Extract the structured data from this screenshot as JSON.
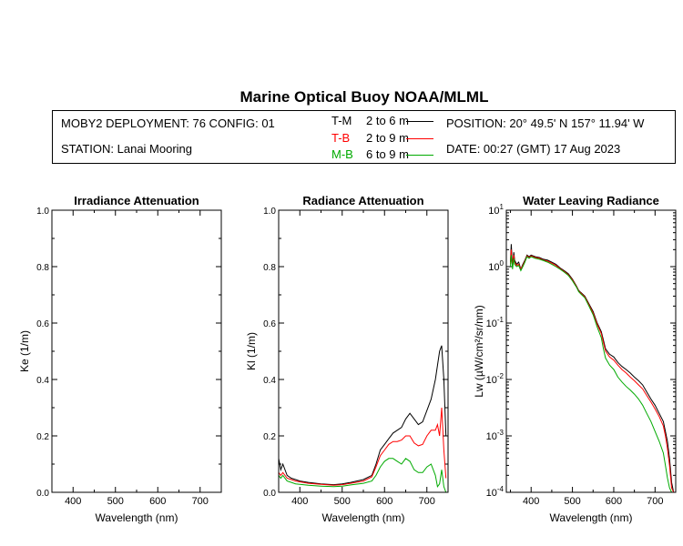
{
  "header": {
    "title": "Marine Optical Buoy NOAA/MLML",
    "deployment": "MOBY2 DEPLOYMENT: 76 CONFIG: 01",
    "station": "STATION: Lanai Mooring",
    "position": "POSITION: 20° 49.5' N   157° 11.94' W",
    "date": "DATE: 00:27 (GMT) 17 Aug 2023",
    "legend": [
      {
        "key": "T-M",
        "range": "2 to 6  m",
        "color": "#000000"
      },
      {
        "key": "T-B",
        "range": "2 to 9  m",
        "color": "#ff0000"
      },
      {
        "key": "M-B",
        "range": "6 to 9  m",
        "color": "#00aa00"
      }
    ]
  },
  "chart_data": [
    {
      "type": "line",
      "title": "Irradiance Attenuation",
      "xlabel": "Wavelength (nm)",
      "ylabel": "Ke  (1/m)",
      "xlim": [
        350,
        750
      ],
      "ylim": [
        0,
        1
      ],
      "xticks": [
        400,
        500,
        600,
        700
      ],
      "yticks": [
        "0.0",
        "0.2",
        "0.4",
        "0.6",
        "0.8",
        "1.0"
      ],
      "series": []
    },
    {
      "type": "line",
      "title": "Radiance Attenuation",
      "xlabel": "Wavelength (nm)",
      "ylabel": "Kl  (1/m)",
      "xlim": [
        350,
        750
      ],
      "ylim": [
        0,
        1
      ],
      "xticks": [
        400,
        500,
        600,
        700
      ],
      "yticks": [
        "0.0",
        "0.2",
        "0.4",
        "0.6",
        "0.8",
        "1.0"
      ],
      "series": [
        {
          "name": "T-M",
          "color": "#000000",
          "x": [
            350,
            355,
            360,
            370,
            380,
            390,
            400,
            420,
            450,
            480,
            500,
            520,
            550,
            570,
            580,
            590,
            600,
            610,
            620,
            630,
            640,
            650,
            660,
            670,
            680,
            690,
            700,
            710,
            720,
            725,
            730,
            735,
            740,
            745
          ],
          "y": [
            0.12,
            0.08,
            0.1,
            0.06,
            0.05,
            0.045,
            0.04,
            0.035,
            0.03,
            0.027,
            0.03,
            0.035,
            0.045,
            0.06,
            0.1,
            0.15,
            0.17,
            0.19,
            0.21,
            0.22,
            0.23,
            0.26,
            0.28,
            0.26,
            0.24,
            0.25,
            0.29,
            0.33,
            0.4,
            0.45,
            0.5,
            0.52,
            0.4,
            0.2
          ]
        },
        {
          "name": "T-B",
          "color": "#ff0000",
          "x": [
            350,
            355,
            360,
            370,
            380,
            390,
            400,
            420,
            450,
            480,
            500,
            520,
            550,
            570,
            580,
            590,
            600,
            610,
            620,
            630,
            640,
            650,
            660,
            670,
            680,
            690,
            700,
            710,
            720,
            725,
            730,
            735,
            740,
            745
          ],
          "y": [
            0.07,
            0.06,
            0.07,
            0.05,
            0.045,
            0.04,
            0.037,
            0.032,
            0.028,
            0.025,
            0.027,
            0.032,
            0.04,
            0.055,
            0.09,
            0.13,
            0.15,
            0.17,
            0.18,
            0.18,
            0.185,
            0.2,
            0.2,
            0.175,
            0.165,
            0.17,
            0.2,
            0.22,
            0.22,
            0.24,
            0.2,
            0.3,
            0.15,
            0.05
          ]
        },
        {
          "name": "M-B",
          "color": "#00aa00",
          "x": [
            350,
            355,
            360,
            370,
            380,
            390,
            400,
            420,
            450,
            480,
            500,
            520,
            550,
            570,
            580,
            590,
            600,
            610,
            620,
            630,
            640,
            650,
            660,
            670,
            680,
            690,
            700,
            710,
            720,
            725,
            730,
            735,
            740,
            745
          ],
          "y": [
            0.06,
            0.05,
            0.06,
            0.04,
            0.035,
            0.03,
            0.028,
            0.025,
            0.022,
            0.02,
            0.022,
            0.026,
            0.032,
            0.04,
            0.06,
            0.09,
            0.11,
            0.12,
            0.12,
            0.11,
            0.1,
            0.12,
            0.11,
            0.08,
            0.07,
            0.07,
            0.09,
            0.1,
            0.06,
            0.02,
            0.03,
            0.08,
            0.02,
            0.0
          ]
        }
      ]
    },
    {
      "type": "line",
      "title": "Water Leaving Radiance",
      "xlabel": "Wavelength (nm)",
      "ylabel": "Lw  (µW/cm²/sr/nm)",
      "xlim": [
        340,
        750
      ],
      "ylim": [
        0.0001,
        10
      ],
      "yscale": "log",
      "xticks": [
        400,
        500,
        600,
        700
      ],
      "yticks": [
        {
          "base": "10",
          "exp": "1"
        },
        {
          "base": "10",
          "exp": "0"
        },
        {
          "base": "10",
          "exp": "-1"
        },
        {
          "base": "10",
          "exp": "-2"
        },
        {
          "base": "10",
          "exp": "-3"
        },
        {
          "base": "10",
          "exp": "-4"
        }
      ],
      "series": [
        {
          "name": "T-M",
          "color": "#000000",
          "x": [
            350,
            352,
            355,
            358,
            360,
            365,
            370,
            375,
            380,
            385,
            390,
            395,
            400,
            410,
            420,
            430,
            440,
            450,
            460,
            470,
            480,
            490,
            500,
            510,
            515,
            520,
            530,
            540,
            550,
            560,
            570,
            575,
            580,
            590,
            600,
            610,
            620,
            630,
            640,
            650,
            660,
            670,
            680,
            690,
            700,
            710,
            720,
            725,
            730,
            735,
            740,
            745
          ],
          "y": [
            1.2,
            2.5,
            1.0,
            1.8,
            1.3,
            1.1,
            1.2,
            0.9,
            1.1,
            1.3,
            1.6,
            1.5,
            1.6,
            1.5,
            1.45,
            1.35,
            1.3,
            1.2,
            1.1,
            0.95,
            0.85,
            0.75,
            0.6,
            0.45,
            0.38,
            0.35,
            0.3,
            0.22,
            0.16,
            0.1,
            0.07,
            0.05,
            0.035,
            0.028,
            0.025,
            0.02,
            0.017,
            0.015,
            0.013,
            0.011,
            0.0095,
            0.008,
            0.006,
            0.0045,
            0.0035,
            0.0025,
            0.0018,
            0.0012,
            0.0008,
            0.0004,
            0.00015,
            0.0001
          ]
        },
        {
          "name": "T-B",
          "color": "#ff0000",
          "x": [
            350,
            352,
            355,
            358,
            360,
            365,
            370,
            375,
            380,
            385,
            390,
            395,
            400,
            410,
            420,
            430,
            440,
            450,
            460,
            470,
            480,
            490,
            500,
            510,
            515,
            520,
            530,
            540,
            550,
            560,
            570,
            575,
            580,
            590,
            600,
            610,
            620,
            630,
            640,
            650,
            660,
            670,
            680,
            690,
            700,
            710,
            720,
            725,
            730,
            735,
            740,
            745
          ],
          "y": [
            1.1,
            2.0,
            1.0,
            1.6,
            1.2,
            1.05,
            1.1,
            0.9,
            1.05,
            1.25,
            1.55,
            1.45,
            1.55,
            1.45,
            1.4,
            1.3,
            1.25,
            1.15,
            1.05,
            0.92,
            0.82,
            0.72,
            0.58,
            0.44,
            0.37,
            0.34,
            0.29,
            0.21,
            0.15,
            0.095,
            0.065,
            0.045,
            0.032,
            0.025,
            0.022,
            0.018,
            0.015,
            0.013,
            0.011,
            0.0095,
            0.008,
            0.0068,
            0.0052,
            0.004,
            0.003,
            0.0022,
            0.0015,
            0.001,
            0.0006,
            0.0003,
            0.00012,
            0.0001
          ]
        },
        {
          "name": "M-B",
          "color": "#00aa00",
          "x": [
            350,
            352,
            355,
            358,
            360,
            365,
            370,
            375,
            380,
            385,
            390,
            395,
            400,
            410,
            420,
            430,
            440,
            450,
            460,
            470,
            480,
            490,
            500,
            510,
            515,
            520,
            530,
            540,
            550,
            560,
            570,
            575,
            580,
            590,
            600,
            610,
            620,
            630,
            640,
            650,
            660,
            670,
            680,
            690,
            700,
            710,
            720,
            725,
            730,
            735,
            740
          ],
          "y": [
            1.0,
            1.6,
            0.9,
            1.4,
            1.1,
            1.0,
            1.05,
            0.85,
            1.0,
            1.2,
            1.5,
            1.4,
            1.5,
            1.4,
            1.35,
            1.28,
            1.2,
            1.1,
            1.0,
            0.9,
            0.8,
            0.7,
            0.56,
            0.43,
            0.36,
            0.33,
            0.28,
            0.2,
            0.14,
            0.085,
            0.055,
            0.035,
            0.024,
            0.018,
            0.015,
            0.011,
            0.009,
            0.0075,
            0.0065,
            0.0055,
            0.0045,
            0.0035,
            0.0025,
            0.0018,
            0.0012,
            0.0008,
            0.0005,
            0.0003,
            0.00018,
            0.00012,
            0.0001
          ]
        }
      ]
    }
  ]
}
